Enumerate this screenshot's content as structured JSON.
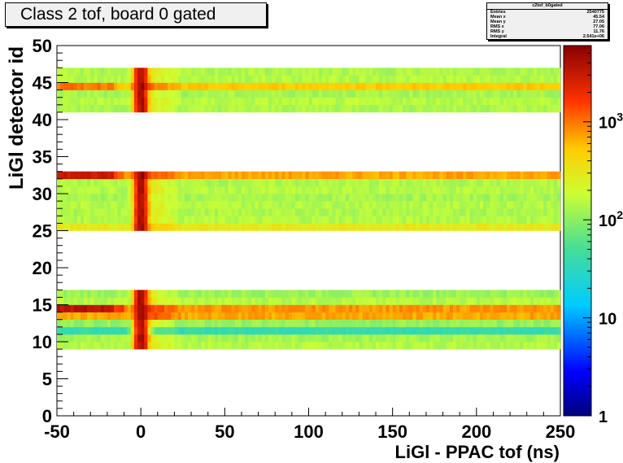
{
  "title": "Class 2 tof, board 0 gated",
  "stats": {
    "name": "c2tof_b0gated",
    "rows": [
      {
        "label": "Entries",
        "value": "2540775"
      },
      {
        "label": "Mean x",
        "value": "45.54"
      },
      {
        "label": "Mean y",
        "value": "27.05"
      },
      {
        "label": "RMS x",
        "value": "77.06"
      },
      {
        "label": "RMS y",
        "value": "11.76"
      },
      {
        "label": "Integral",
        "value": "2.541e+06"
      }
    ]
  },
  "chart_data": {
    "type": "heatmap",
    "title": "Class 2 tof, board 0 gated",
    "xlabel": "LiGl - PPAC tof (ns)",
    "ylabel": "LiGl detector id",
    "xlim": [
      -50,
      250
    ],
    "ylim": [
      0,
      50
    ],
    "xticks": [
      -50,
      0,
      50,
      100,
      150,
      200,
      250
    ],
    "yticks": [
      0,
      5,
      10,
      15,
      20,
      25,
      30,
      35,
      40,
      45,
      50
    ],
    "zscale": "log",
    "zlim": [
      1,
      6000
    ],
    "zticks": [
      {
        "value": 1,
        "label": "1"
      },
      {
        "value": 10,
        "label": "10"
      },
      {
        "value": 100,
        "label": "10",
        "exp": "2"
      },
      {
        "value": 1000,
        "label": "10",
        "exp": "3"
      }
    ],
    "populated_rows": {
      "ids": [
        9,
        10,
        11,
        12,
        13,
        14,
        15,
        16,
        25,
        26,
        27,
        28,
        29,
        30,
        31,
        32,
        41,
        42,
        43,
        44,
        45,
        46
      ],
      "background_counts": [
        150,
        130,
        40,
        110,
        700,
        800,
        150,
        120,
        300,
        150,
        140,
        150,
        130,
        150,
        140,
        700,
        140,
        150,
        130,
        500,
        150,
        140
      ],
      "early_counts": [
        150,
        130,
        40,
        110,
        700,
        3500,
        150,
        120,
        300,
        150,
        140,
        150,
        130,
        150,
        140,
        3000,
        140,
        150,
        130,
        1000,
        150,
        140
      ]
    },
    "peak": {
      "x": 0,
      "counts": 4000
    }
  }
}
